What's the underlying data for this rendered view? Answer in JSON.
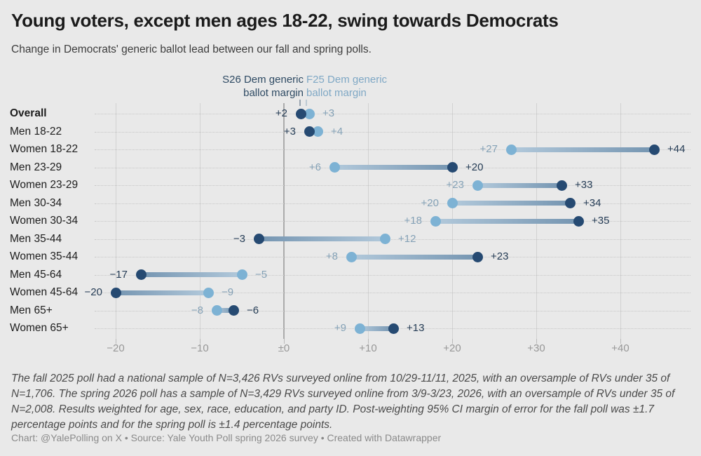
{
  "header": {
    "title": "Young voters, except men ages 18-22, swing towards Democrats",
    "subtitle": "Change in Democrats' generic ballot lead between our fall and spring polls."
  },
  "legend": {
    "s26": {
      "lines": [
        "S26 Dem generic",
        "ballot margin"
      ],
      "color": "#2e4a63"
    },
    "f25": {
      "lines": [
        "F25 Dem generic",
        "ballot margin"
      ],
      "color": "#7fa8c5"
    }
  },
  "chart_data": {
    "type": "scatter",
    "variant": "dumbbell-arrow",
    "title": "Young voters, except men ages 18-22, swing towards Democrats",
    "categories": [
      "Overall",
      "Men 18-22",
      "Women 18-22",
      "Men 23-29",
      "Women 23-29",
      "Men 30-34",
      "Women 30-34",
      "Men 35-44",
      "Women 35-44",
      "Men 45-64",
      "Women 45-64",
      "Men 65+",
      "Women 65+"
    ],
    "bold_category": "Overall",
    "series": [
      {
        "name": "S26 Dem generic ballot margin",
        "color": "#264a72",
        "label_color": "#253c55",
        "values": [
          2,
          3,
          44,
          20,
          33,
          34,
          35,
          -3,
          23,
          -17,
          -20,
          -6,
          13
        ],
        "labels": [
          "+2",
          "+3",
          "+44",
          "+20",
          "+33",
          "+34",
          "+35",
          "−3",
          "+23",
          "−17",
          "−20",
          "−6",
          "+13"
        ]
      },
      {
        "name": "F25 Dem generic ballot margin",
        "color": "#7db2d4",
        "label_color": "#84a1b6",
        "values": [
          3,
          4,
          27,
          6,
          23,
          20,
          18,
          12,
          8,
          -5,
          -9,
          -8,
          9
        ],
        "labels": [
          "+3",
          "+4",
          "+27",
          "+6",
          "+23",
          "+20",
          "+18",
          "+12",
          "+8",
          "−5",
          "−9",
          "−8",
          "+9"
        ]
      }
    ],
    "connector": {
      "from_color": "#b2c9db",
      "to_color": "#7595b1"
    },
    "x_axis": {
      "ticks": [
        -20,
        -10,
        0,
        10,
        20,
        30,
        40
      ],
      "tick_labels": [
        "−20",
        "−10",
        "±0",
        "+10",
        "+20",
        "+30",
        "+40"
      ],
      "xlim": [
        -27,
        48
      ],
      "zero_line": true
    },
    "grid": "vertical-gridlines-with-dotted-row-leaders",
    "legend_position": "top-center-above-first-row"
  },
  "footer": {
    "note": "The fall 2025 poll had a national sample of N=3,426 RVs surveyed online from 10/29-11/11, 2025, with an oversample of RVs under 35 of N=1,706. The spring 2026 poll has a sample of N=3,429 RVs surveyed online from 3/9-3/23, 2026, with an oversample of RVs under 35 of N=2,008. Results weighted for age, sex, race, education, and party ID. Post-weighting 95% CI margin of error for the fall poll was ±1.7 percentage points and for the spring poll is ±1.4 percentage points.",
    "credit": "Chart: @YalePolling on X • Source: Yale Youth Poll spring 2026 survey • Created with Datawrapper"
  }
}
